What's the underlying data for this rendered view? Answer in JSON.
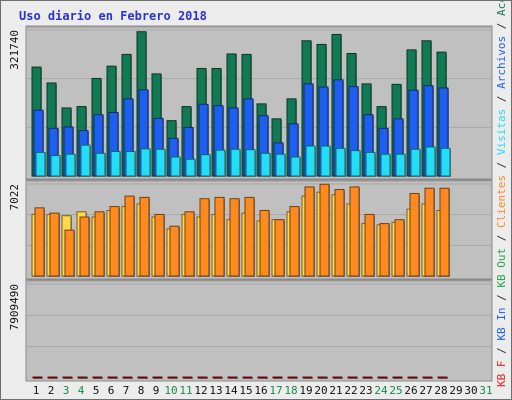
{
  "title": "Uso diario en Febrero 2018",
  "side_legend": {
    "accesos": "Accesos",
    "archivos": "Archivos",
    "visitas": "Visitas",
    "out": "KB Out",
    "clientes": "Clientes",
    "in": "KB In",
    "f": "KB F",
    "separator": " / "
  },
  "colors": {
    "accesos": "#117a55",
    "archivos": "#1f5ff0",
    "visitas": "#22ddf5",
    "clientes": "#ffd84a",
    "sitios": "#ff8a1f",
    "kb": "#ee1c1c",
    "day_weekday": "#111111",
    "day_weekend": "#1a8a4a"
  },
  "chart_data": [
    {
      "type": "bar",
      "panel": "top",
      "ymax_label": "321740",
      "ylim": [
        0,
        321740
      ],
      "categories": [
        "1",
        "2",
        "3",
        "4",
        "5",
        "6",
        "7",
        "8",
        "9",
        "10",
        "11",
        "12",
        "13",
        "14",
        "15",
        "16",
        "17",
        "18",
        "19",
        "20",
        "21",
        "22",
        "23",
        "24",
        "25",
        "26",
        "27",
        "28",
        "29",
        "30",
        "31"
      ],
      "series": [
        {
          "key": "accesos",
          "name": "Accesos",
          "values": [
            240000,
            205000,
            150000,
            153000,
            215000,
            242000,
            268000,
            318000,
            225000,
            122000,
            153000,
            237000,
            237000,
            269000,
            268000,
            159000,
            126000,
            170000,
            298000,
            290000,
            312000,
            270000,
            203000,
            153000,
            202000,
            278000,
            298000,
            273000,
            null,
            null,
            null
          ]
        },
        {
          "key": "archivos",
          "name": "Archivos",
          "values": [
            145000,
            105000,
            108000,
            100000,
            135000,
            140000,
            170000,
            190000,
            127000,
            83000,
            107000,
            158000,
            155000,
            150000,
            170000,
            133000,
            73000,
            115000,
            203000,
            196000,
            212000,
            197000,
            135000,
            105000,
            126000,
            189000,
            199000,
            194000,
            null,
            null,
            null
          ]
        },
        {
          "key": "visitas",
          "name": "Visitas",
          "values": [
            52000,
            45000,
            48000,
            68000,
            50000,
            54000,
            54000,
            60000,
            59000,
            42000,
            37000,
            47000,
            57000,
            59000,
            58000,
            50000,
            48000,
            42000,
            66000,
            66000,
            61000,
            56000,
            52000,
            48000,
            48000,
            59000,
            64000,
            61000,
            null,
            null,
            null
          ]
        }
      ]
    },
    {
      "type": "bar",
      "panel": "middle",
      "ymax_label": "7022",
      "ylim": [
        0,
        7022
      ],
      "categories": [
        "1",
        "2",
        "3",
        "4",
        "5",
        "6",
        "7",
        "8",
        "9",
        "10",
        "11",
        "12",
        "13",
        "14",
        "15",
        "16",
        "17",
        "18",
        "19",
        "20",
        "21",
        "22",
        "23",
        "24",
        "25",
        "26",
        "27",
        "28",
        "29",
        "30",
        "31"
      ],
      "series": [
        {
          "key": "clientes",
          "name": "Clientes",
          "values": [
            4700,
            4700,
            4600,
            4900,
            4500,
            5000,
            5300,
            5500,
            4500,
            3600,
            4700,
            4500,
            4700,
            4300,
            4800,
            4200,
            4300,
            4900,
            6100,
            6400,
            6200,
            5500,
            4000,
            3900,
            4100,
            5100,
            5500,
            5000,
            null,
            null,
            null
          ]
        },
        {
          "key": "sitios",
          "name": "Sitios",
          "values": [
            5200,
            4800,
            3500,
            4500,
            4900,
            5300,
            6100,
            6000,
            4700,
            3800,
            4900,
            5900,
            6000,
            5900,
            6000,
            5000,
            4300,
            5300,
            6800,
            7000,
            6600,
            6800,
            4700,
            4000,
            4300,
            6300,
            6700,
            6700,
            null,
            null,
            null
          ]
        }
      ]
    },
    {
      "type": "bar",
      "panel": "bottom",
      "ymax_label": "7909490",
      "ylim": [
        0,
        7909490
      ],
      "categories": [
        "1",
        "2",
        "3",
        "4",
        "5",
        "6",
        "7",
        "8",
        "9",
        "10",
        "11",
        "12",
        "13",
        "14",
        "15",
        "16",
        "17",
        "18",
        "19",
        "20",
        "21",
        "22",
        "23",
        "24",
        "25",
        "26",
        "27",
        "28",
        "29",
        "30",
        "31"
      ],
      "series": [
        {
          "key": "kb",
          "name": "KB F",
          "values": [
            5500,
            4600,
            3500,
            4000,
            6300,
            6000,
            6000,
            6100,
            4400,
            4700,
            5700,
            5900,
            5500,
            6600,
            7200,
            5600,
            4700,
            5300,
            7500,
            8700,
            7000,
            7800,
            5200,
            5700,
            5200,
            7800,
            9000,
            7800,
            null,
            null,
            null
          ]
        }
      ]
    }
  ]
}
